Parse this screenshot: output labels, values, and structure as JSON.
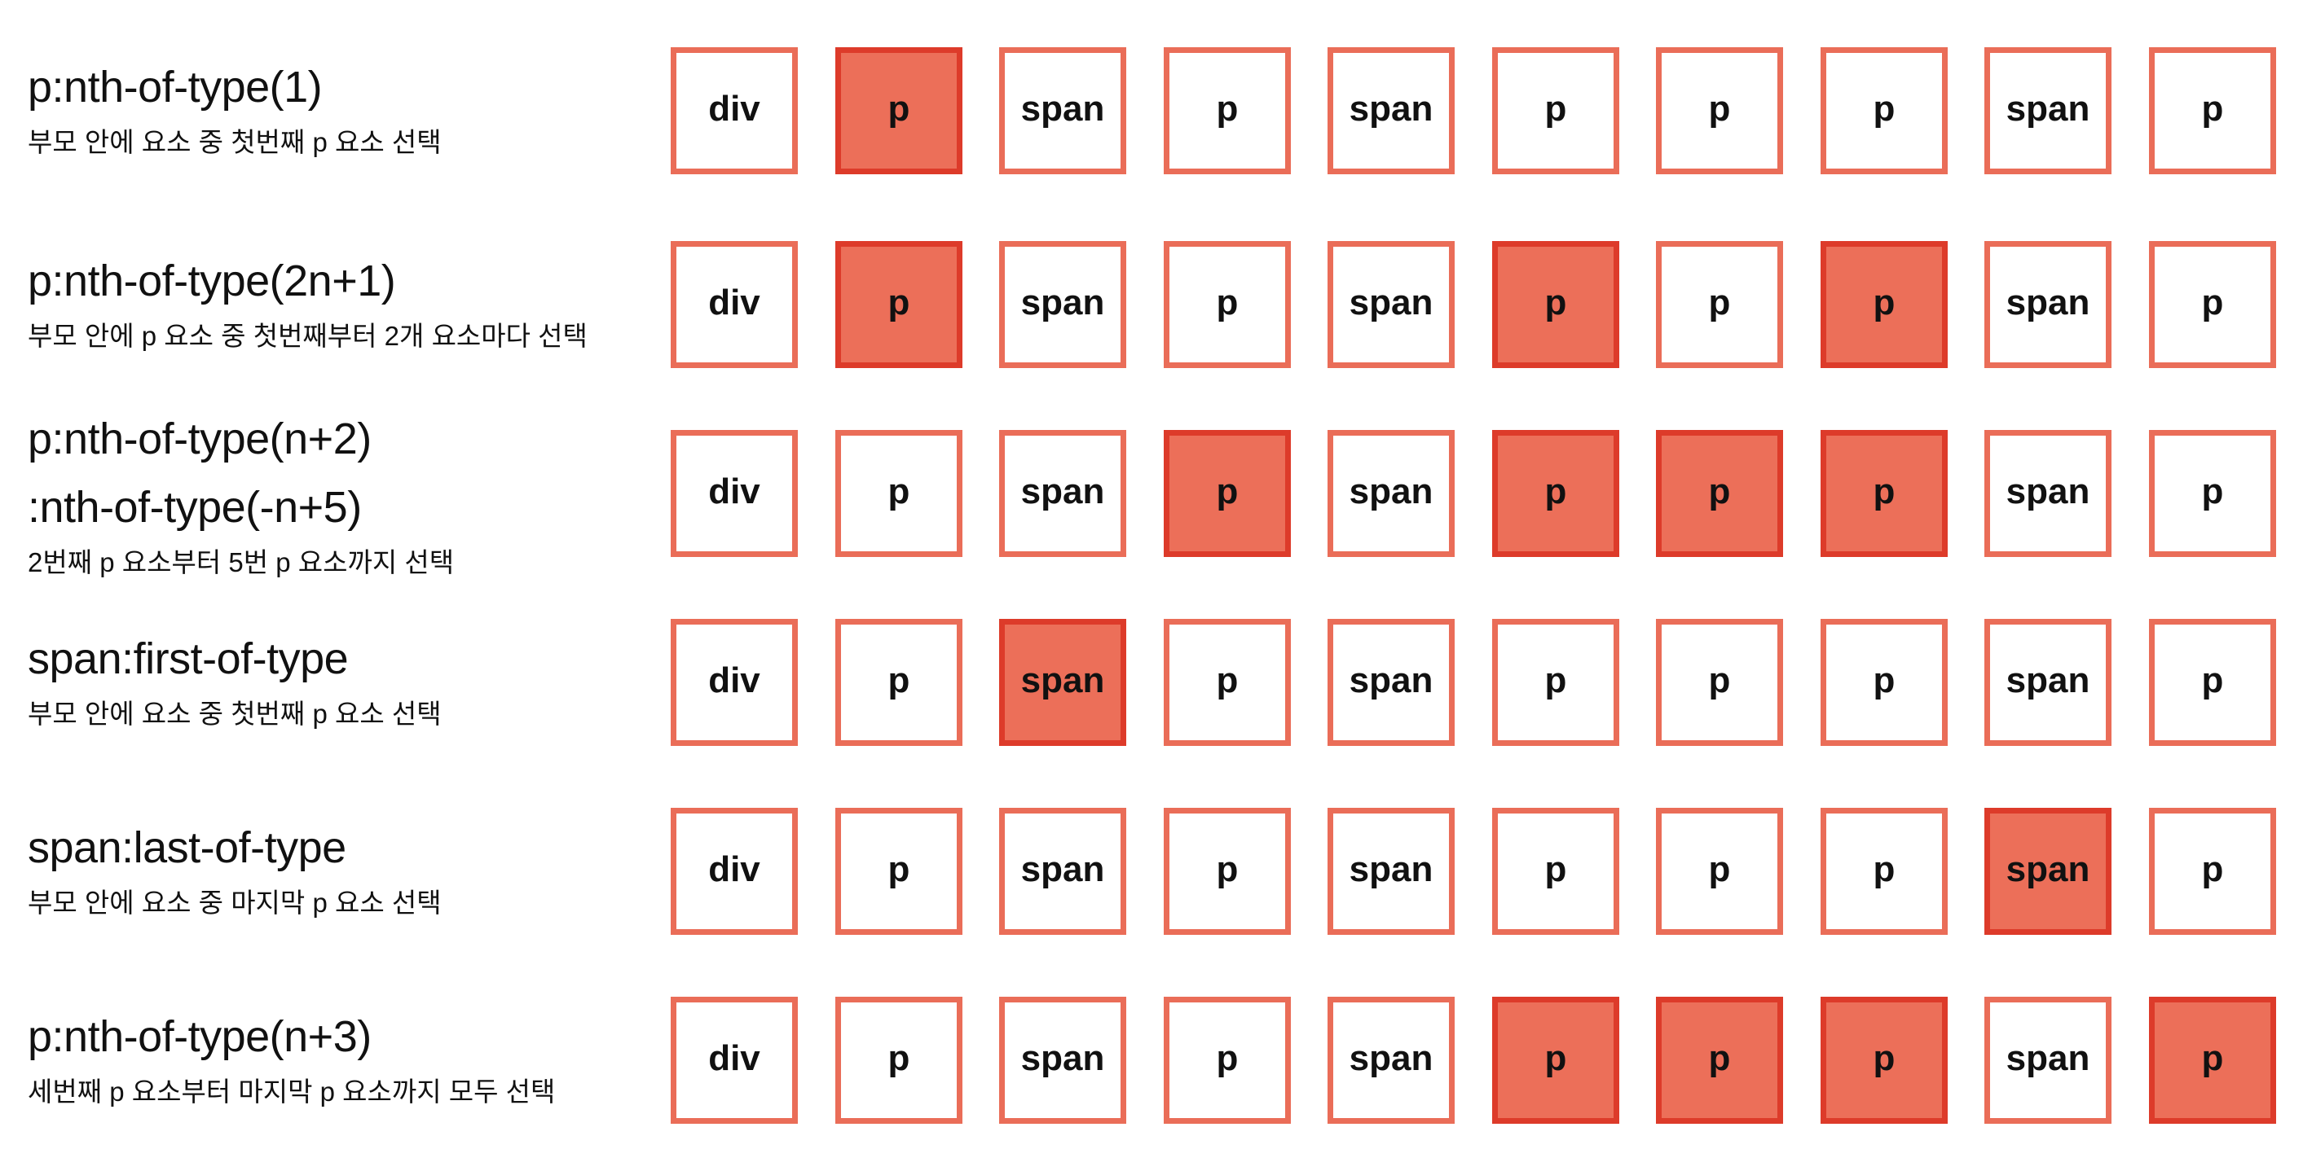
{
  "colors": {
    "box_border": "#ea6d58",
    "selected_fill": "#ec6f59",
    "selected_border": "#dd3b2a",
    "text": "#111111"
  },
  "elements": [
    "div",
    "p",
    "span",
    "p",
    "span",
    "p",
    "p",
    "p",
    "span",
    "p"
  ],
  "rows": [
    {
      "selector_lines": [
        "p:nth-of-type(1)"
      ],
      "description": "부모 안에 요소 중 첫번째 p 요소 선택",
      "selected": [
        false,
        true,
        false,
        false,
        false,
        false,
        false,
        false,
        false,
        false
      ]
    },
    {
      "selector_lines": [
        "p:nth-of-type(2n+1)"
      ],
      "description": "부모 안에 p 요소 중 첫번째부터 2개 요소마다 선택",
      "selected": [
        false,
        true,
        false,
        false,
        false,
        true,
        false,
        true,
        false,
        false
      ]
    },
    {
      "selector_lines": [
        "p:nth-of-type(n+2)",
        ":nth-of-type(-n+5)"
      ],
      "description": "2번째 p 요소부터 5번 p 요소까지 선택",
      "selected": [
        false,
        false,
        false,
        true,
        false,
        true,
        true,
        true,
        false,
        false
      ]
    },
    {
      "selector_lines": [
        "span:first-of-type"
      ],
      "description": "부모 안에 요소 중 첫번째 p 요소 선택",
      "selected": [
        false,
        false,
        true,
        false,
        false,
        false,
        false,
        false,
        false,
        false
      ]
    },
    {
      "selector_lines": [
        "span:last-of-type"
      ],
      "description": "부모 안에 요소 중 마지막 p 요소 선택",
      "selected": [
        false,
        false,
        false,
        false,
        false,
        false,
        false,
        false,
        true,
        false
      ]
    },
    {
      "selector_lines": [
        "p:nth-of-type(n+3)"
      ],
      "description": "세번째 p 요소부터 마지막 p 요소까지 모두 선택",
      "selected": [
        false,
        false,
        false,
        false,
        false,
        true,
        true,
        true,
        false,
        true
      ]
    }
  ]
}
